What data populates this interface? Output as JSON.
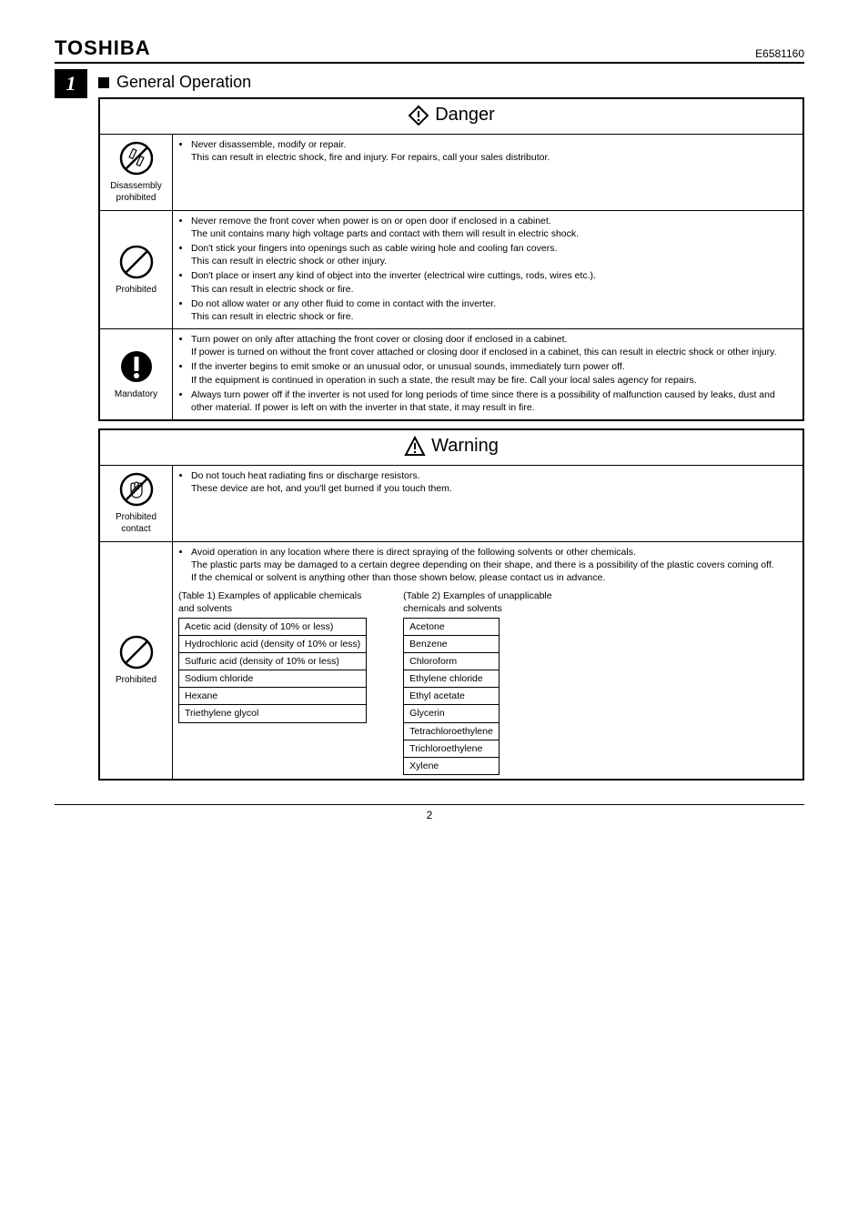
{
  "header": {
    "brand": "TOSHIBA",
    "docnum": "E6581160"
  },
  "chapter": "1",
  "section_title": "General Operation",
  "danger": {
    "title": "Danger",
    "rows": [
      {
        "icon_label": "Disassembly prohibited",
        "icon": "disassembly",
        "items": [
          {
            "bullet": "Never disassemble, modify or repair.",
            "sub": "This can result in electric shock, fire and injury. For repairs, call your sales distributor."
          }
        ]
      },
      {
        "icon_label": "Prohibited",
        "icon": "prohibited",
        "items": [
          {
            "bullet": "Never remove the front cover when power is on or open door if enclosed in a cabinet.",
            "sub": "The unit contains many high voltage parts and contact with them will result in electric shock."
          },
          {
            "bullet": "Don't stick your fingers into openings such as cable wiring hole and cooling fan covers.",
            "sub": "This can result in electric shock or other injury."
          },
          {
            "bullet": "Don't place or insert any kind of object into the inverter (electrical wire cuttings, rods, wires etc.).",
            "sub": "This can result in electric shock or fire."
          },
          {
            "bullet": "Do not allow water or any other fluid to come in contact with the inverter.",
            "sub": "This can result in electric shock or fire."
          }
        ]
      },
      {
        "icon_label": "Mandatory",
        "icon": "mandatory",
        "items": [
          {
            "bullet": "Turn power on only after attaching the front cover or closing door if enclosed in a cabinet.",
            "sub": "If power is turned on without the front cover attached or closing door if enclosed in a cabinet, this can result in electric shock or other injury."
          },
          {
            "bullet": "If the inverter begins to emit smoke or an unusual odor, or unusual sounds, immediately turn power off.",
            "sub": "If the equipment is continued in operation in such a state, the result may be fire. Call your local sales agency for repairs."
          },
          {
            "bullet": "Always turn power off if the inverter is not used for long periods of time since there is a possibility of malfunction caused by leaks, dust and other material. If power is left on with the inverter in that state, it may result in fire.",
            "sub": ""
          }
        ]
      }
    ]
  },
  "warning": {
    "title": "Warning",
    "rows": [
      {
        "icon_label": "Prohibited contact",
        "icon": "prohibited-contact",
        "items": [
          {
            "bullet": "Do not touch heat radiating fins or discharge resistors.",
            "sub": "These device are hot, and you'll get burned if you touch them."
          }
        ]
      },
      {
        "icon_label": "Prohibited",
        "icon": "prohibited",
        "intro_bullet": "Avoid operation in any location where there is direct spraying of the following solvents or other chemicals.",
        "intro_sub": "The plastic parts may be damaged to a certain degree depending on their shape, and there is a possibility of the plastic covers coming off.\nIf the chemical or solvent is anything other than those shown below, please contact us in advance.",
        "table1_caption": "(Table 1)   Examples of applicable chemicals\n                  and solvents",
        "table1": [
          "Acetic acid (density of 10% or less)",
          "Hydrochloric acid (density of 10% or less)",
          "Sulfuric acid (density of 10% or less)",
          "Sodium chloride",
          "Hexane",
          "Triethylene glycol"
        ],
        "table2_caption": "(Table 2)   Examples of unapplicable\n                  chemicals and solvents",
        "table2": [
          "Acetone",
          "Benzene",
          "Chloroform",
          "Ethylene chloride",
          "Ethyl acetate",
          "Glycerin",
          "Tetrachloroethylene",
          "Trichloroethylene",
          "Xylene"
        ]
      }
    ]
  },
  "page_number": "2",
  "colors": {
    "text": "#000000",
    "bg": "#ffffff"
  }
}
